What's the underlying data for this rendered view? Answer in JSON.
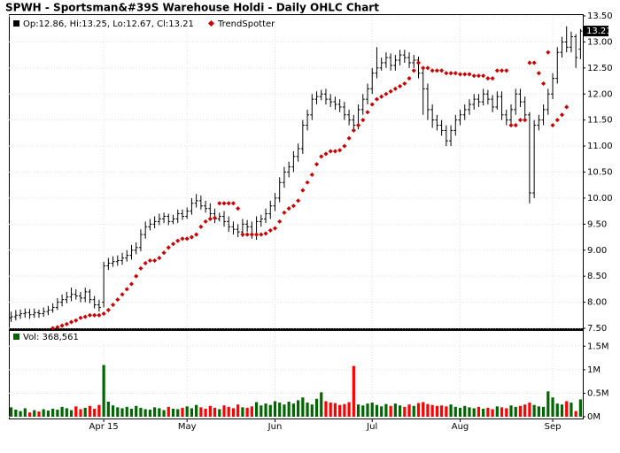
{
  "chart_data": [
    {
      "type": "ohlc",
      "title": "SPWH - Sportsman&#39S Warehouse Holdi - Daily OHLC Chart",
      "ohlc_legend": "Op:12.86, Hi:13.25, Lo:12.67, Cl:13.21",
      "color": "#000000",
      "grid": true,
      "categories": [
        null,
        null,
        null,
        null,
        null,
        null,
        null,
        null,
        null,
        null,
        null,
        null,
        null,
        null,
        null,
        null,
        null,
        null,
        null,
        null,
        "Apr 15",
        null,
        null,
        null,
        null,
        null,
        null,
        null,
        null,
        null,
        null,
        null,
        null,
        null,
        null,
        null,
        null,
        null,
        "May",
        null,
        null,
        null,
        null,
        null,
        null,
        null,
        null,
        null,
        null,
        null,
        null,
        null,
        null,
        null,
        null,
        null,
        null,
        "Jun",
        null,
        null,
        null,
        null,
        null,
        null,
        null,
        null,
        null,
        null,
        null,
        null,
        null,
        null,
        null,
        null,
        null,
        null,
        null,
        null,
        "Jul",
        null,
        null,
        null,
        null,
        null,
        null,
        null,
        null,
        null,
        null,
        null,
        null,
        null,
        null,
        null,
        null,
        null,
        null,
        "Aug",
        null,
        null,
        null,
        null,
        null,
        null,
        null,
        null,
        null,
        null,
        null,
        null,
        null,
        null,
        null,
        null,
        null,
        null,
        null,
        "Sep",
        null,
        null,
        null,
        null,
        null,
        null
      ],
      "open": [
        7.7,
        7.72,
        7.75,
        7.78,
        7.8,
        7.76,
        7.8,
        7.78,
        7.82,
        7.85,
        7.9,
        8.0,
        8.05,
        8.1,
        8.15,
        8.12,
        8.08,
        8.2,
        8.05,
        7.95,
        8.0,
        8.7,
        8.75,
        8.78,
        8.8,
        8.85,
        8.9,
        9.0,
        9.05,
        9.3,
        9.45,
        9.5,
        9.55,
        9.6,
        9.65,
        9.55,
        9.6,
        9.7,
        9.65,
        9.75,
        9.9,
        9.95,
        9.85,
        9.8,
        9.7,
        9.6,
        9.65,
        9.55,
        9.45,
        9.4,
        9.35,
        9.5,
        9.45,
        9.3,
        9.55,
        9.6,
        9.7,
        9.85,
        10.0,
        10.3,
        10.5,
        10.6,
        10.8,
        10.95,
        11.4,
        11.6,
        11.9,
        11.95,
        12.0,
        11.9,
        11.85,
        11.8,
        11.75,
        11.6,
        11.5,
        11.4,
        11.7,
        11.9,
        12.1,
        12.4,
        12.5,
        12.6,
        12.7,
        12.55,
        12.65,
        12.75,
        12.7,
        12.6,
        12.65,
        12.4,
        12.1,
        11.7,
        11.5,
        11.4,
        11.3,
        11.1,
        11.3,
        11.5,
        11.6,
        11.7,
        11.8,
        11.9,
        11.85,
        12.0,
        11.9,
        11.75,
        11.95,
        11.6,
        11.5,
        11.7,
        12.0,
        11.85,
        11.6,
        10.1,
        11.4,
        11.5,
        11.7,
        12.0,
        12.3,
        12.8,
        13.0,
        12.9,
        13.1,
        12.86
      ],
      "high": [
        7.82,
        7.85,
        7.86,
        7.88,
        7.87,
        7.88,
        7.86,
        7.9,
        7.93,
        7.98,
        8.08,
        8.15,
        8.2,
        8.28,
        8.25,
        8.2,
        8.28,
        8.25,
        8.12,
        8.05,
        8.78,
        8.85,
        8.88,
        8.9,
        8.95,
        9.0,
        9.1,
        9.15,
        9.4,
        9.55,
        9.6,
        9.65,
        9.7,
        9.72,
        9.7,
        9.68,
        9.78,
        9.78,
        9.82,
        10.0,
        10.08,
        10.05,
        9.95,
        9.9,
        9.8,
        9.72,
        9.75,
        9.65,
        9.55,
        9.5,
        9.6,
        9.58,
        9.55,
        9.65,
        9.68,
        9.8,
        9.95,
        10.1,
        10.4,
        10.6,
        10.7,
        10.9,
        11.05,
        11.5,
        11.7,
        12.0,
        12.05,
        12.08,
        12.1,
        12.0,
        11.95,
        11.9,
        11.85,
        11.7,
        11.6,
        11.8,
        12.0,
        12.2,
        12.5,
        12.9,
        12.7,
        12.8,
        12.78,
        12.75,
        12.85,
        12.85,
        12.8,
        12.75,
        12.72,
        12.5,
        12.2,
        11.8,
        11.6,
        11.5,
        11.4,
        11.4,
        11.6,
        11.7,
        11.8,
        11.9,
        12.0,
        12.0,
        12.1,
        12.08,
        11.98,
        12.05,
        12.05,
        11.7,
        11.8,
        12.1,
        12.1,
        11.95,
        11.65,
        11.5,
        11.6,
        11.8,
        12.1,
        12.4,
        12.9,
        13.1,
        13.3,
        13.2,
        13.15,
        13.25
      ],
      "low": [
        7.62,
        7.65,
        7.68,
        7.7,
        7.68,
        7.7,
        7.7,
        7.72,
        7.75,
        7.8,
        7.85,
        7.92,
        7.98,
        8.02,
        8.05,
        8.0,
        8.0,
        7.98,
        7.88,
        7.82,
        7.9,
        8.62,
        8.68,
        8.7,
        8.72,
        8.78,
        8.82,
        8.92,
        8.98,
        9.22,
        9.38,
        9.42,
        9.48,
        9.52,
        9.48,
        9.5,
        9.52,
        9.58,
        9.6,
        9.68,
        9.82,
        9.78,
        9.72,
        9.62,
        9.52,
        9.55,
        9.45,
        9.35,
        9.3,
        9.25,
        9.25,
        9.35,
        9.22,
        9.2,
        9.45,
        9.52,
        9.6,
        9.75,
        9.92,
        10.2,
        10.4,
        10.5,
        10.7,
        10.85,
        11.3,
        11.5,
        11.8,
        11.88,
        11.8,
        11.75,
        11.7,
        11.65,
        11.5,
        11.4,
        11.3,
        11.32,
        11.6,
        11.8,
        12.0,
        12.3,
        12.45,
        12.5,
        12.45,
        12.45,
        12.55,
        12.6,
        12.5,
        12.5,
        12.3,
        11.6,
        11.5,
        11.35,
        11.3,
        11.2,
        11.0,
        11.0,
        11.2,
        11.4,
        11.5,
        11.6,
        11.7,
        11.75,
        11.78,
        11.8,
        11.65,
        11.7,
        11.5,
        11.4,
        11.4,
        11.6,
        11.75,
        11.5,
        9.9,
        10.0,
        11.3,
        11.4,
        11.6,
        11.9,
        12.2,
        12.7,
        12.8,
        12.8,
        12.5,
        12.67
      ],
      "close": [
        7.72,
        7.75,
        7.78,
        7.8,
        7.76,
        7.8,
        7.78,
        7.82,
        7.85,
        7.9,
        8.0,
        8.05,
        8.1,
        8.15,
        8.12,
        8.08,
        8.2,
        8.05,
        7.95,
        7.9,
        8.7,
        8.75,
        8.78,
        8.8,
        8.85,
        8.9,
        9.0,
        9.05,
        9.3,
        9.45,
        9.5,
        9.55,
        9.6,
        9.65,
        9.55,
        9.6,
        9.7,
        9.65,
        9.75,
        9.9,
        9.95,
        9.85,
        9.8,
        9.7,
        9.6,
        9.65,
        9.55,
        9.45,
        9.4,
        9.35,
        9.5,
        9.45,
        9.3,
        9.55,
        9.6,
        9.7,
        9.85,
        10.0,
        10.3,
        10.5,
        10.6,
        10.8,
        10.95,
        11.4,
        11.6,
        11.9,
        11.95,
        12.0,
        11.9,
        11.85,
        11.8,
        11.75,
        11.6,
        11.5,
        11.4,
        11.7,
        11.9,
        12.1,
        12.4,
        12.5,
        12.6,
        12.7,
        12.55,
        12.65,
        12.75,
        12.7,
        12.6,
        12.65,
        12.4,
        12.1,
        11.7,
        11.5,
        11.4,
        11.3,
        11.1,
        11.3,
        11.5,
        11.6,
        11.7,
        11.8,
        11.9,
        11.85,
        12.0,
        11.9,
        11.75,
        11.95,
        11.6,
        11.5,
        11.7,
        12.0,
        11.85,
        11.6,
        10.1,
        11.4,
        11.5,
        11.7,
        12.0,
        12.3,
        12.8,
        13.0,
        12.9,
        13.1,
        12.7,
        13.21
      ],
      "overlay": {
        "name": "TrendSpotter",
        "color": "#cc0000",
        "values": [
          null,
          null,
          null,
          null,
          null,
          null,
          null,
          null,
          null,
          7.5,
          7.52,
          7.55,
          7.58,
          7.62,
          7.65,
          7.7,
          7.72,
          7.75,
          7.75,
          7.75,
          7.78,
          7.85,
          7.95,
          8.05,
          8.15,
          8.25,
          8.35,
          8.5,
          8.65,
          8.75,
          8.8,
          8.8,
          8.85,
          8.95,
          9.05,
          9.12,
          9.18,
          9.22,
          9.22,
          9.25,
          9.3,
          9.45,
          9.55,
          9.6,
          9.62,
          9.9,
          9.9,
          9.9,
          9.9,
          9.8,
          9.3,
          9.3,
          9.3,
          9.3,
          9.3,
          9.32,
          9.38,
          9.42,
          9.55,
          9.72,
          9.8,
          9.85,
          9.95,
          10.15,
          10.3,
          10.45,
          10.65,
          10.8,
          10.85,
          10.9,
          10.9,
          10.92,
          11.0,
          11.15,
          11.3,
          11.4,
          11.5,
          11.65,
          11.8,
          11.9,
          11.95,
          12.0,
          12.05,
          12.1,
          12.15,
          12.2,
          12.3,
          12.45,
          12.6,
          12.5,
          12.5,
          12.45,
          12.45,
          12.45,
          12.4,
          12.4,
          12.4,
          12.38,
          12.38,
          12.38,
          12.35,
          12.35,
          12.35,
          12.3,
          12.3,
          12.45,
          12.45,
          12.45,
          11.4,
          11.4,
          11.5,
          11.5,
          12.6,
          12.6,
          12.4,
          12.2,
          12.8,
          11.4,
          11.5,
          11.6,
          11.75,
          null,
          null,
          null
        ]
      },
      "ylim": [
        7.5,
        13.5
      ],
      "yticks": [
        {
          "value": 7.5,
          "label": "7.50"
        },
        {
          "value": 8,
          "label": "8.00"
        },
        {
          "value": 8.5,
          "label": "8.50"
        },
        {
          "value": 9,
          "label": "9.00"
        },
        {
          "value": 9.5,
          "label": "9.50"
        },
        {
          "value": 10,
          "label": "10.00"
        },
        {
          "value": 10.5,
          "label": "10.50"
        },
        {
          "value": 11,
          "label": "11.00"
        },
        {
          "value": 11.5,
          "label": "11.50"
        },
        {
          "value": 12,
          "label": "12.00"
        },
        {
          "value": 12.5,
          "label": "12.50"
        },
        {
          "value": 13,
          "label": "13.00"
        },
        {
          "value": 13.5,
          "label": "13.50"
        }
      ]
    },
    {
      "type": "bar",
      "legend": "Vol: 368,561",
      "up_color": "#006600",
      "down_color": "#ff0000",
      "values": [
        200000,
        150000,
        120000,
        180000,
        90000,
        140000,
        110000,
        160000,
        130000,
        170000,
        150000,
        210000,
        180000,
        140000,
        220000,
        160000,
        190000,
        230000,
        170000,
        250000,
        1100000,
        320000,
        240000,
        200000,
        180000,
        210000,
        170000,
        230000,
        190000,
        160000,
        150000,
        200000,
        180000,
        140000,
        210000,
        170000,
        160000,
        190000,
        220000,
        180000,
        250000,
        200000,
        170000,
        230000,
        190000,
        160000,
        240000,
        210000,
        180000,
        260000,
        200000,
        190000,
        220000,
        310000,
        240000,
        280000,
        250000,
        330000,
        300000,
        260000,
        320000,
        280000,
        350000,
        410000,
        300000,
        260000,
        380000,
        520000,
        330000,
        300000,
        290000,
        250000,
        270000,
        310000,
        1080000,
        260000,
        240000,
        280000,
        300000,
        250000,
        220000,
        270000,
        230000,
        280000,
        240000,
        210000,
        260000,
        230000,
        290000,
        310000,
        270000,
        250000,
        230000,
        240000,
        220000,
        260000,
        210000,
        190000,
        230000,
        200000,
        180000,
        210000,
        170000,
        190000,
        160000,
        220000,
        200000,
        180000,
        240000,
        210000,
        230000,
        260000,
        300000,
        250000,
        220000,
        210000,
        540000,
        410000,
        280000,
        260000,
        330000,
        300000,
        120000,
        368561
      ],
      "ylim": [
        0,
        1750000
      ],
      "yticks": [
        {
          "value": 0,
          "label": "0M"
        },
        {
          "value": 500000,
          "label": "0.5M"
        },
        {
          "value": 1000000,
          "label": "1M"
        },
        {
          "value": 1500000,
          "label": "1.5M"
        }
      ]
    }
  ]
}
